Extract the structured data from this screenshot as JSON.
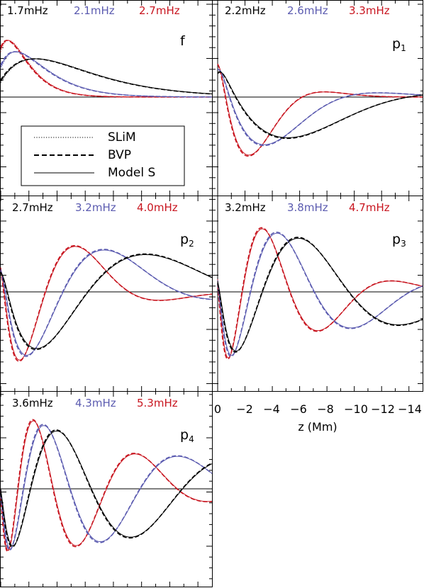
{
  "chart_data": {
    "type": "line",
    "xlabel": "z (Mm)",
    "xlim": [
      0.0,
      -15.0
    ],
    "xticks": [
      "0",
      "−2",
      "−4",
      "−6",
      "−8",
      "−10",
      "−12",
      "−14"
    ],
    "xtick_values": [
      0,
      -2,
      -4,
      -6,
      -8,
      -10,
      -12,
      -14
    ],
    "legend": {
      "placement": "inside f panel, lower-left",
      "entries": [
        {
          "label": "SLiM",
          "style": "dotted"
        },
        {
          "label": "BVP",
          "style": "dashed"
        },
        {
          "label": "Model S",
          "style": "solid"
        }
      ]
    },
    "colors": {
      "low": "#000000",
      "mid": "#5b5bb0",
      "high": "#c8151f"
    },
    "panels": [
      {
        "mode": "f",
        "mode_sub": "",
        "freqs": [
          "1.7mHz",
          "2.1mHz",
          "2.7mHz"
        ]
      },
      {
        "mode": "p",
        "mode_sub": "1",
        "freqs": [
          "2.2mHz",
          "2.6mHz",
          "3.3mHz"
        ]
      },
      {
        "mode": "p",
        "mode_sub": "2",
        "freqs": [
          "2.7mHz",
          "3.2mHz",
          "4.0mHz"
        ]
      },
      {
        "mode": "p",
        "mode_sub": "3",
        "freqs": [
          "3.2mHz",
          "3.8mHz",
          "4.7mHz"
        ]
      },
      {
        "mode": "p",
        "mode_sub": "4",
        "freqs": [
          "3.6mHz",
          "4.3mHz",
          "5.3mHz"
        ]
      }
    ],
    "series": [
      {
        "panel": 0,
        "color": "high",
        "shape": "f",
        "params": {
          "k": 0.95,
          "amp": 0.8
        }
      },
      {
        "panel": 0,
        "color": "mid",
        "shape": "f",
        "params": {
          "k": 0.62,
          "amp": 0.64
        }
      },
      {
        "panel": 0,
        "color": "low",
        "shape": "f",
        "params": {
          "k": 0.33,
          "amp": 0.54
        }
      },
      {
        "panel": 1,
        "color": "high",
        "shape": "p",
        "params": {
          "n": 1,
          "L": 6.0,
          "amp": 1.0,
          "g": 0.55
        }
      },
      {
        "panel": 1,
        "color": "mid",
        "shape": "p",
        "params": {
          "n": 1,
          "L": 9.0,
          "amp": 0.82,
          "g": 0.6
        }
      },
      {
        "panel": 1,
        "color": "low",
        "shape": "p",
        "params": {
          "n": 1,
          "L": 13.5,
          "amp": 0.7,
          "g": 0.7
        }
      },
      {
        "panel": 2,
        "color": "high",
        "shape": "p",
        "params": {
          "n": 2,
          "L": 9.0,
          "amp": 1.0,
          "g": 0.55
        }
      },
      {
        "panel": 2,
        "color": "mid",
        "shape": "p",
        "params": {
          "n": 2,
          "L": 12.5,
          "amp": 0.92,
          "g": 0.6
        }
      },
      {
        "panel": 2,
        "color": "low",
        "shape": "p",
        "params": {
          "n": 2,
          "L": 17.5,
          "amp": 0.82,
          "g": 0.7
        }
      },
      {
        "panel": 3,
        "color": "high",
        "shape": "p",
        "params": {
          "n": 3,
          "L": 10.5,
          "amp": 1.0,
          "g": 0.55
        }
      },
      {
        "panel": 3,
        "color": "mid",
        "shape": "p",
        "params": {
          "n": 3,
          "L": 14.0,
          "amp": 0.93,
          "g": 0.6
        }
      },
      {
        "panel": 3,
        "color": "low",
        "shape": "p",
        "params": {
          "n": 3,
          "L": 19.0,
          "amp": 0.85,
          "g": 0.7
        }
      },
      {
        "panel": 4,
        "color": "high",
        "shape": "p",
        "params": {
          "n": 4,
          "L": 12.5,
          "amp": 1.0,
          "g": 0.55
        }
      },
      {
        "panel": 4,
        "color": "mid",
        "shape": "p",
        "params": {
          "n": 4,
          "L": 16.5,
          "amp": 0.93,
          "g": 0.6
        }
      },
      {
        "panel": 4,
        "color": "low",
        "shape": "p",
        "params": {
          "n": 4,
          "L": 21.5,
          "amp": 0.85,
          "g": 0.7
        }
      }
    ]
  }
}
